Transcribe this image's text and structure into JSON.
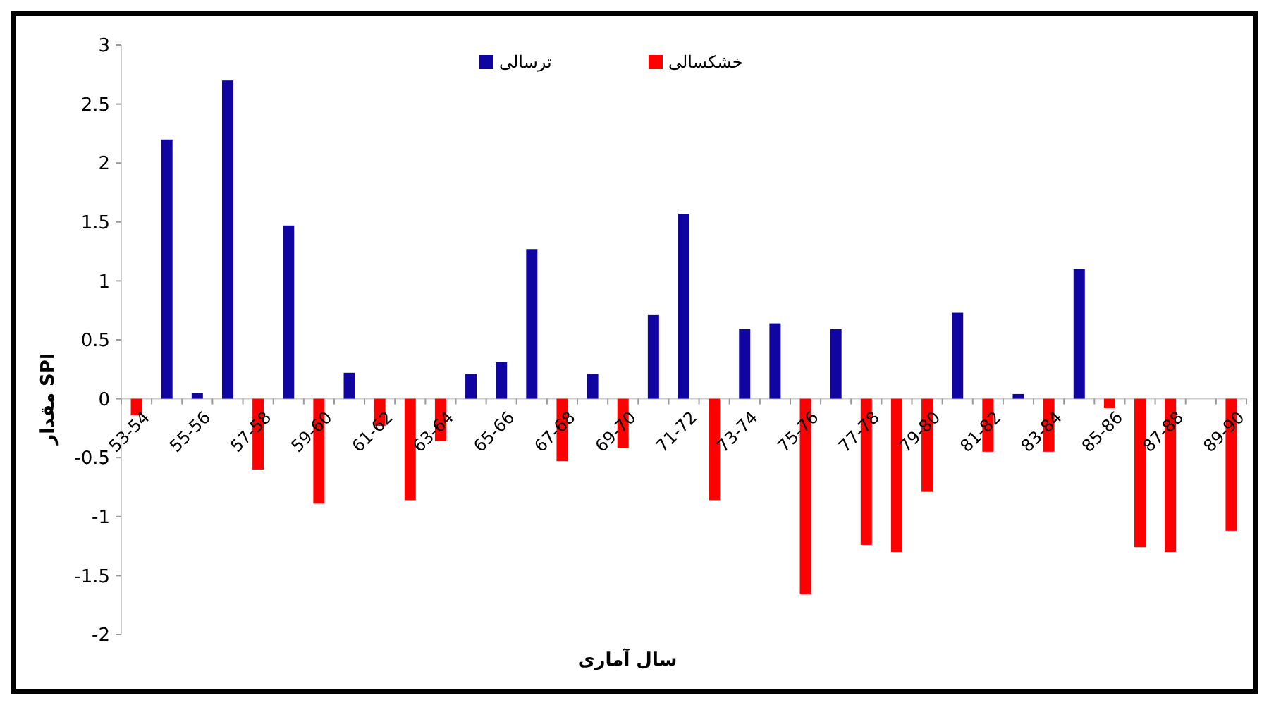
{
  "chart_data": {
    "type": "bar",
    "xlabel": "سال آماری",
    "ylabel": "مقدار SPI",
    "categories": [
      "53-54",
      null,
      "55-56",
      null,
      "57-58",
      null,
      "59-60",
      null,
      "61-62",
      null,
      "63-64",
      null,
      "65-66",
      null,
      "67-68",
      null,
      "69-70",
      null,
      "71-72",
      null,
      "73-74",
      null,
      "75-76",
      null,
      "77-78",
      null,
      "79-80",
      null,
      "81-82",
      null,
      "83-84",
      null,
      "85-86",
      null,
      "87-88",
      null,
      "89-90"
    ],
    "series": [
      {
        "name": "ترسالی",
        "color": "#1005a0",
        "values": [
          null,
          2.2,
          0.05,
          2.7,
          null,
          1.47,
          null,
          0.22,
          null,
          null,
          null,
          0.21,
          0.31,
          1.27,
          null,
          0.21,
          null,
          0.71,
          1.57,
          null,
          0.59,
          0.64,
          null,
          0.59,
          null,
          null,
          null,
          0.73,
          null,
          0.04,
          null,
          1.1,
          null,
          null,
          null,
          null,
          null
        ]
      },
      {
        "name": "خشکسالی",
        "color": "#ff0000",
        "values": [
          -0.14,
          null,
          null,
          null,
          -0.6,
          null,
          -0.89,
          null,
          -0.23,
          -0.86,
          -0.36,
          null,
          null,
          null,
          -0.53,
          null,
          -0.42,
          null,
          null,
          -0.86,
          null,
          null,
          -1.66,
          null,
          -1.24,
          -1.3,
          -0.79,
          null,
          -0.45,
          null,
          -0.45,
          null,
          -0.08,
          -1.26,
          -1.3,
          null,
          -1.12
        ]
      }
    ],
    "ylim": [
      -2,
      3
    ],
    "yticks": [
      -2,
      -1.5,
      -1,
      -0.5,
      0,
      0.5,
      1,
      1.5,
      2,
      2.5,
      3
    ],
    "grid": false,
    "legend": "top"
  }
}
